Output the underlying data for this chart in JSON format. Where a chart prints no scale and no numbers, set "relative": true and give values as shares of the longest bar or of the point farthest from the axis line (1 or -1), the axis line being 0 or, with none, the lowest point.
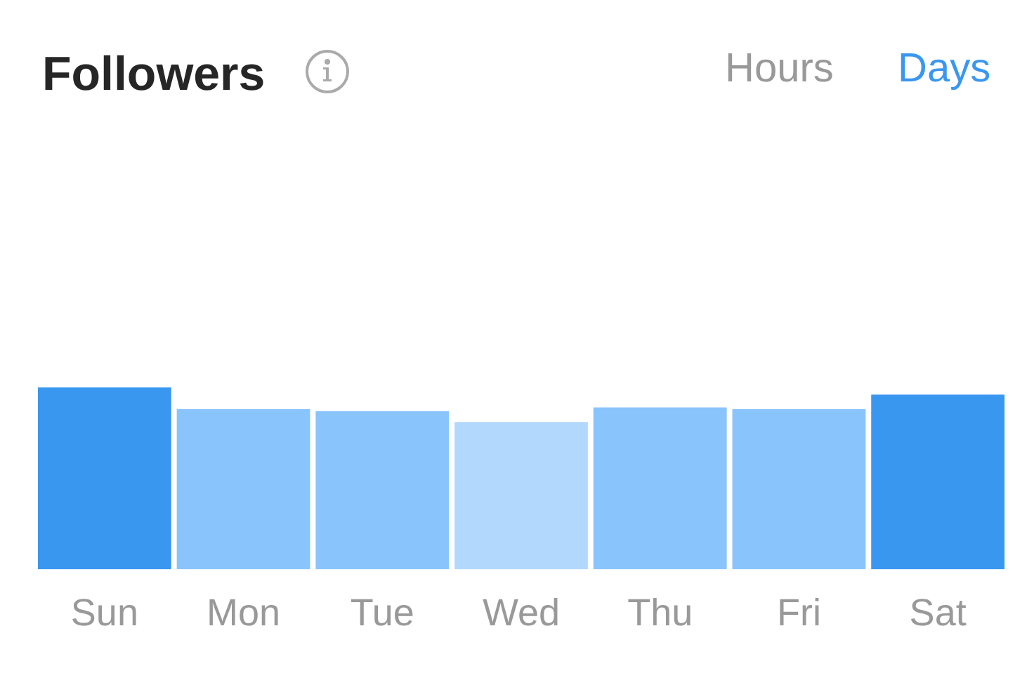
{
  "chart_data": {
    "type": "bar",
    "title": "Followers",
    "annotations": [
      "Hours",
      "Days"
    ],
    "categories": [
      "Sun",
      "Mon",
      "Tue",
      "Wed",
      "Thu",
      "Fri",
      "Sat"
    ],
    "values": [
      1,
      0.88,
      0.87,
      0.81,
      0.89,
      0.88,
      0.96
    ],
    "colors": [
      "#3a97f0",
      "#8ac4fc",
      "#8ac4fc",
      "#b3d8fd",
      "#8ac4fc",
      "#8ac4fc",
      "#3a97f0"
    ],
    "relative": true
  }
}
